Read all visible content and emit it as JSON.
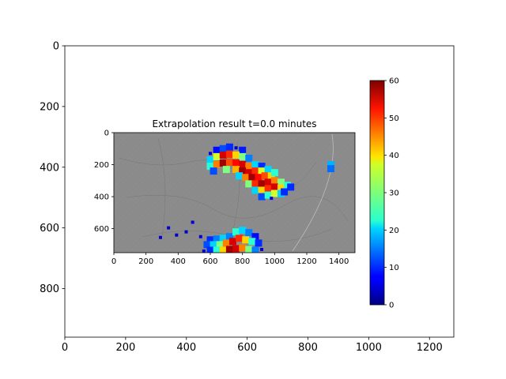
{
  "outer_axes": {
    "x_ticks": [
      "0",
      "200",
      "400",
      "600",
      "800",
      "1000",
      "1200"
    ],
    "y_ticks": [
      "0",
      "200",
      "400",
      "600",
      "800"
    ],
    "xlim": [
      0,
      1280
    ],
    "ylim": [
      960,
      0
    ]
  },
  "chart_data": {
    "type": "heatmap",
    "title": "Extrapolation result t=0.0 minutes",
    "xlabel": "",
    "ylabel": "",
    "x_ticks": [
      "0",
      "200",
      "400",
      "600",
      "800",
      "1000",
      "1200",
      "1400"
    ],
    "y_ticks": [
      "0",
      "200",
      "400",
      "600"
    ],
    "xlim": [
      0,
      1500
    ],
    "ylim": [
      750,
      0
    ],
    "background": "#8c8c8c",
    "colormap": "jet",
    "colorbar": {
      "ticks": [
        "0",
        "10",
        "20",
        "30",
        "40",
        "50",
        "60"
      ],
      "range": [
        0,
        60
      ]
    },
    "cells": [
      {
        "x": 600,
        "y": 130,
        "v": 5
      },
      {
        "x": 640,
        "y": 110,
        "v": 8
      },
      {
        "x": 680,
        "y": 100,
        "v": 12
      },
      {
        "x": 720,
        "y": 90,
        "v": 10
      },
      {
        "x": 760,
        "y": 95,
        "v": 6
      },
      {
        "x": 800,
        "y": 110,
        "v": 9
      },
      {
        "x": 600,
        "y": 170,
        "v": 20
      },
      {
        "x": 640,
        "y": 150,
        "v": 35
      },
      {
        "x": 680,
        "y": 140,
        "v": 55
      },
      {
        "x": 720,
        "y": 135,
        "v": 50
      },
      {
        "x": 760,
        "y": 140,
        "v": 40
      },
      {
        "x": 800,
        "y": 150,
        "v": 30
      },
      {
        "x": 840,
        "y": 160,
        "v": 15
      },
      {
        "x": 600,
        "y": 210,
        "v": 25
      },
      {
        "x": 640,
        "y": 200,
        "v": 45
      },
      {
        "x": 680,
        "y": 190,
        "v": 58
      },
      {
        "x": 720,
        "y": 185,
        "v": 48
      },
      {
        "x": 760,
        "y": 190,
        "v": 52
      },
      {
        "x": 800,
        "y": 200,
        "v": 55
      },
      {
        "x": 840,
        "y": 210,
        "v": 45
      },
      {
        "x": 880,
        "y": 200,
        "v": 20
      },
      {
        "x": 920,
        "y": 210,
        "v": 10
      },
      {
        "x": 620,
        "y": 240,
        "v": 12
      },
      {
        "x": 700,
        "y": 230,
        "v": 30
      },
      {
        "x": 760,
        "y": 230,
        "v": 42
      },
      {
        "x": 800,
        "y": 240,
        "v": 58
      },
      {
        "x": 840,
        "y": 250,
        "v": 55
      },
      {
        "x": 880,
        "y": 240,
        "v": 50
      },
      {
        "x": 920,
        "y": 240,
        "v": 35
      },
      {
        "x": 960,
        "y": 230,
        "v": 20
      },
      {
        "x": 780,
        "y": 270,
        "v": 20
      },
      {
        "x": 820,
        "y": 280,
        "v": 45
      },
      {
        "x": 860,
        "y": 280,
        "v": 58
      },
      {
        "x": 900,
        "y": 280,
        "v": 52
      },
      {
        "x": 940,
        "y": 270,
        "v": 48
      },
      {
        "x": 980,
        "y": 270,
        "v": 40
      },
      {
        "x": 1000,
        "y": 250,
        "v": 25
      },
      {
        "x": 840,
        "y": 320,
        "v": 30
      },
      {
        "x": 880,
        "y": 320,
        "v": 50
      },
      {
        "x": 920,
        "y": 320,
        "v": 58
      },
      {
        "x": 960,
        "y": 310,
        "v": 55
      },
      {
        "x": 1000,
        "y": 300,
        "v": 45
      },
      {
        "x": 1040,
        "y": 310,
        "v": 30
      },
      {
        "x": 880,
        "y": 360,
        "v": 20
      },
      {
        "x": 920,
        "y": 360,
        "v": 40
      },
      {
        "x": 960,
        "y": 350,
        "v": 50
      },
      {
        "x": 1000,
        "y": 340,
        "v": 55
      },
      {
        "x": 1040,
        "y": 345,
        "v": 40
      },
      {
        "x": 1080,
        "y": 330,
        "v": 25
      },
      {
        "x": 1100,
        "y": 340,
        "v": 10
      },
      {
        "x": 920,
        "y": 400,
        "v": 12
      },
      {
        "x": 960,
        "y": 390,
        "v": 25
      },
      {
        "x": 1000,
        "y": 380,
        "v": 35
      },
      {
        "x": 1040,
        "y": 380,
        "v": 20
      },
      {
        "x": 1060,
        "y": 370,
        "v": 10
      },
      {
        "x": 980,
        "y": 410,
        "v": 6
      },
      {
        "x": 1350,
        "y": 200,
        "v": 18
      },
      {
        "x": 1350,
        "y": 225,
        "v": 14
      },
      {
        "x": 600,
        "y": 670,
        "v": 10
      },
      {
        "x": 640,
        "y": 665,
        "v": 15
      },
      {
        "x": 680,
        "y": 660,
        "v": 20
      },
      {
        "x": 720,
        "y": 650,
        "v": 15
      },
      {
        "x": 760,
        "y": 620,
        "v": 25
      },
      {
        "x": 800,
        "y": 610,
        "v": 20
      },
      {
        "x": 840,
        "y": 625,
        "v": 15
      },
      {
        "x": 880,
        "y": 650,
        "v": 8
      },
      {
        "x": 580,
        "y": 700,
        "v": 12
      },
      {
        "x": 620,
        "y": 700,
        "v": 20
      },
      {
        "x": 660,
        "y": 700,
        "v": 30
      },
      {
        "x": 700,
        "y": 690,
        "v": 45
      },
      {
        "x": 740,
        "y": 680,
        "v": 55
      },
      {
        "x": 780,
        "y": 660,
        "v": 50
      },
      {
        "x": 820,
        "y": 670,
        "v": 40
      },
      {
        "x": 860,
        "y": 680,
        "v": 25
      },
      {
        "x": 900,
        "y": 690,
        "v": 10
      },
      {
        "x": 600,
        "y": 735,
        "v": 10
      },
      {
        "x": 640,
        "y": 735,
        "v": 25
      },
      {
        "x": 680,
        "y": 735,
        "v": 40
      },
      {
        "x": 720,
        "y": 730,
        "v": 58
      },
      {
        "x": 760,
        "y": 725,
        "v": 55
      },
      {
        "x": 800,
        "y": 720,
        "v": 45
      },
      {
        "x": 840,
        "y": 730,
        "v": 30
      },
      {
        "x": 880,
        "y": 735,
        "v": 15
      },
      {
        "x": 560,
        "y": 740,
        "v": 5
      },
      {
        "x": 920,
        "y": 730,
        "v": 5
      },
      {
        "x": 290,
        "y": 655,
        "v": 5
      },
      {
        "x": 340,
        "y": 595,
        "v": 5
      },
      {
        "x": 390,
        "y": 640,
        "v": 4
      },
      {
        "x": 490,
        "y": 560,
        "v": 5
      },
      {
        "x": 450,
        "y": 620,
        "v": 4
      },
      {
        "x": 540,
        "y": 650,
        "v": 5
      }
    ]
  }
}
